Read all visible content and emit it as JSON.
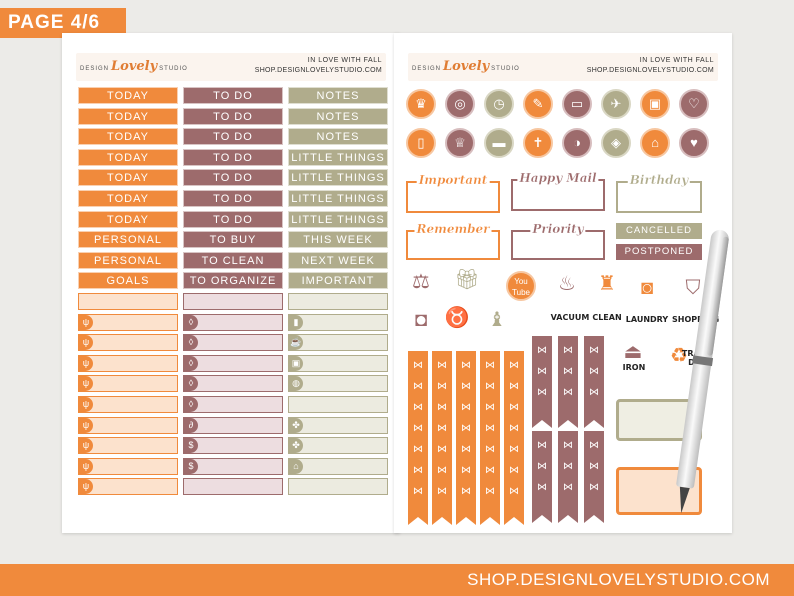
{
  "badge": "PAGE 4/6",
  "footer": "SHOP.DESIGNLOVELYSTUDIO.COM",
  "header": {
    "brand_pre": "DESIGN",
    "brand_mid": "Lovely",
    "brand_post": "STUDIO",
    "title": "IN LOVE WITH FALL",
    "url": "SHOP.DESIGNLOVELYSTUDIO.COM"
  },
  "left": {
    "col1": [
      "TODAY",
      "TODAY",
      "TODAY",
      "TODAY",
      "TODAY",
      "TODAY",
      "TODAY",
      "PERSONAL",
      "PERSONAL",
      "GOALS"
    ],
    "col2": [
      "TO DO",
      "TO DO",
      "TO DO",
      "TO DO",
      "TO DO",
      "TO DO",
      "TO DO",
      "TO BUY",
      "TO CLEAN",
      "TO ORGANIZE"
    ],
    "col3": [
      "NOTES",
      "NOTES",
      "NOTES",
      "LITTLE THINGS",
      "LITTLE THINGS",
      "LITTLE THINGS",
      "LITTLE THINGS",
      "THIS WEEK",
      "NEXT WEEK",
      "IMPORTANT"
    ]
  },
  "right": {
    "titled_boxes": [
      "Important",
      "Happy Mail",
      "Birthday",
      "Remember",
      "Priority"
    ],
    "banners": [
      "CANCELLED",
      "POSTPONED"
    ],
    "captions": [
      "VACUUM",
      "CLEAN",
      "LAUNDRY",
      "SHOPPING",
      "IRON",
      "TRASH DAY"
    ],
    "youtube": "You Tube"
  },
  "colors": {
    "orange": "#f08a3c",
    "mauve": "#9d6b6c",
    "sage": "#b0ac8c"
  },
  "icons": [
    "chef-icon",
    "globe-icon",
    "alarm-clock-icon",
    "ruler-pencil-icon",
    "laptop-icon",
    "airplane-icon",
    "car-icon",
    "heartbeat-icon",
    "tablet-icon",
    "trophy-icon",
    "wallet-icon",
    "book-icon",
    "pills-icon",
    "pill-bottle-icon",
    "house-icon",
    "gift-icon",
    "scale-icon",
    "present-icon",
    "youtube-icon",
    "vacuum-icon",
    "spray-bottle-icon",
    "washing-machine-icon",
    "shopping-bag-icon",
    "camera-icon",
    "piggy-bank-icon",
    "nail-polish-icon",
    "iron-icon",
    "trash-can-icon",
    "pen-icon"
  ]
}
